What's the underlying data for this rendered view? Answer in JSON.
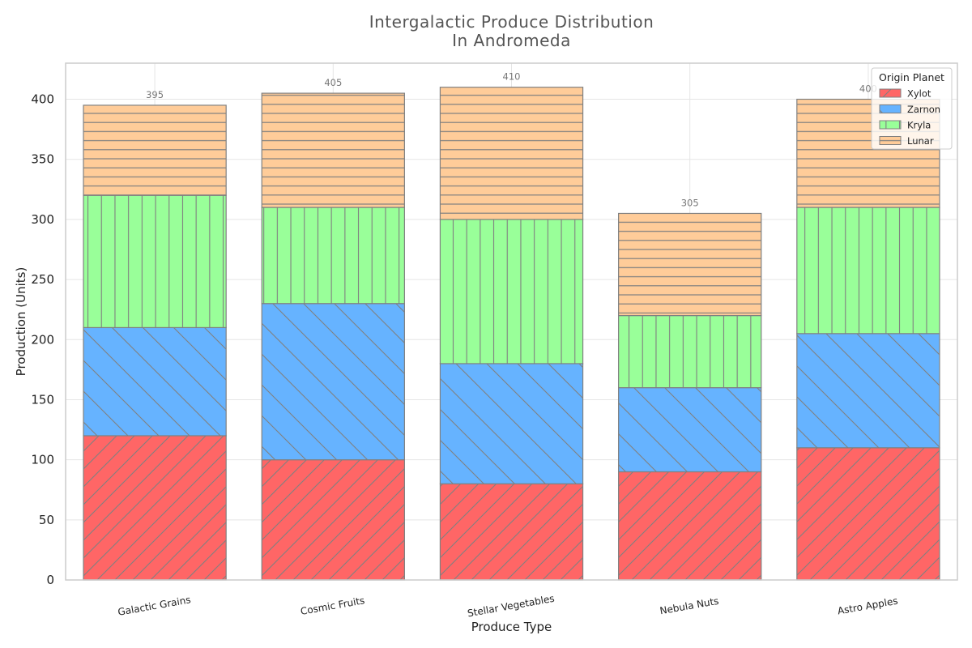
{
  "chart_data": {
    "type": "bar",
    "stacked": true,
    "title": "Intergalactic Produce Distribution\nIn Andromeda",
    "xlabel": "Produce Type",
    "ylabel": "Production (Units)",
    "ylim": [
      0,
      430
    ],
    "yticks": [
      0,
      50,
      100,
      150,
      200,
      250,
      300,
      350,
      400
    ],
    "grid": true,
    "categories": [
      "Galactic Grains",
      "Cosmic Fruits",
      "Stellar Vegetables",
      "Nebula Nuts",
      "Astro Apples"
    ],
    "series": [
      {
        "name": "Xylot",
        "values": [
          120,
          100,
          80,
          90,
          110
        ],
        "color": "#ff6666",
        "hatch": "/"
      },
      {
        "name": "Zarnon",
        "values": [
          90,
          130,
          100,
          70,
          95
        ],
        "color": "#66b3ff",
        "hatch": "\\"
      },
      {
        "name": "Kryla",
        "values": [
          110,
          80,
          120,
          60,
          105
        ],
        "color": "#99ff99",
        "hatch": "|"
      },
      {
        "name": "Lunar",
        "values": [
          75,
          95,
          110,
          85,
          90
        ],
        "color": "#ffcc99",
        "hatch": "-"
      }
    ],
    "totals": [
      395,
      405,
      410,
      305,
      400
    ],
    "legend": {
      "title": "Origin Planet",
      "position": "top-right"
    },
    "edge_color": "#808080"
  }
}
